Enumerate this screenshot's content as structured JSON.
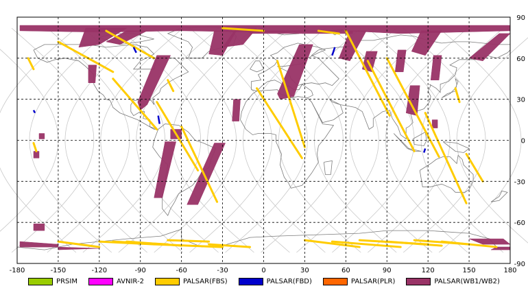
{
  "map": {
    "x_ticks": [
      "-180",
      "-150",
      "-120",
      "-90",
      "-60",
      "-30",
      "0",
      "30",
      "60",
      "90",
      "120",
      "150",
      "180"
    ],
    "y_ticks": [
      "90",
      "60",
      "30",
      "0",
      "-30",
      "-60",
      "-90"
    ],
    "extent": {
      "lon": [
        -180,
        180
      ],
      "lat": [
        -90,
        90
      ]
    },
    "grid": "dashed",
    "colors": {
      "PRSIM": "#99cc00",
      "AVNIR-2": "#ff00ff",
      "PALSAR(FBS)": "#ffcc00",
      "PALSAR(FBD)": "#0000cc",
      "PALSAR(PLR)": "#ff6600",
      "PALSAR(WB1/WB2)": "#993366"
    }
  },
  "legend": [
    {
      "label": "PRSIM",
      "color": "#99cc00"
    },
    {
      "label": "AVNIR-2",
      "color": "#ff00ff"
    },
    {
      "label": "PALSAR(FBS)",
      "color": "#ffcc00"
    },
    {
      "label": "PALSAR(FBD)",
      "color": "#0000cc"
    },
    {
      "label": "PALSAR(PLR)",
      "color": "#ff6600"
    },
    {
      "label": "PALSAR(WB1/WB2)",
      "color": "#993366"
    }
  ]
}
